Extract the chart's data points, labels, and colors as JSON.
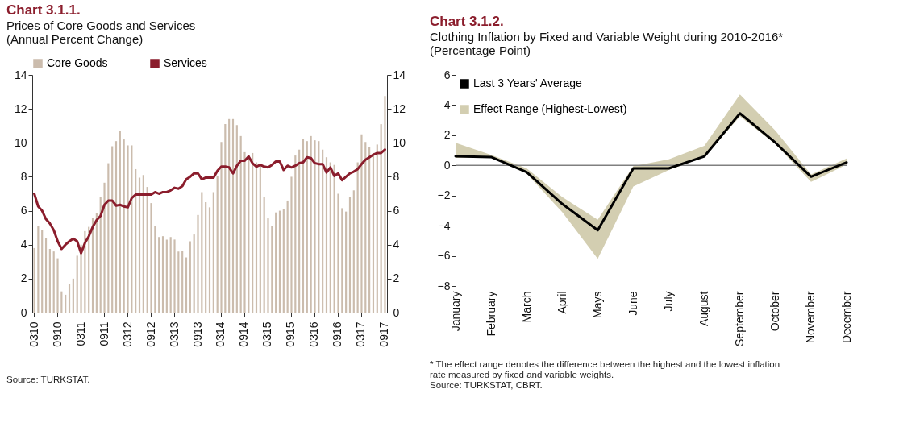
{
  "chart_data": [
    {
      "type": "bar",
      "title": "Chart 3.1.1.",
      "subtitle": "Prices of Core Goods and Services (Annual Percent Change)",
      "categories": [
        "0310",
        null,
        null,
        null,
        null,
        null,
        "0910",
        null,
        null,
        null,
        null,
        null,
        "0311",
        null,
        null,
        null,
        null,
        null,
        "0911",
        null,
        null,
        null,
        null,
        null,
        "0312",
        null,
        null,
        null,
        null,
        null,
        "0912",
        null,
        null,
        null,
        null,
        null,
        "0313",
        null,
        null,
        null,
        null,
        null,
        "0913",
        null,
        null,
        null,
        null,
        null,
        "0314",
        null,
        null,
        null,
        null,
        null,
        "0914",
        null,
        null,
        null,
        null,
        null,
        "0315",
        null,
        null,
        null,
        null,
        null,
        "0915",
        null,
        null,
        null,
        null,
        null,
        "0316",
        null,
        null,
        null,
        null,
        null,
        "0916",
        null,
        null,
        null,
        null,
        null,
        "0317",
        null,
        null,
        null,
        null,
        null,
        "0917"
      ],
      "series": [
        {
          "name": "Core Goods",
          "type": "bar",
          "color": "#cbbcad",
          "values": [
            3.8,
            5.1,
            4.85,
            4.4,
            3.75,
            3.6,
            3.2,
            1.25,
            1.05,
            1.7,
            2.0,
            3.35,
            4.0,
            4.8,
            5.05,
            5.6,
            5.85,
            6.8,
            7.65,
            8.8,
            9.8,
            10.1,
            10.7,
            10.2,
            9.85,
            9.85,
            8.45,
            7.95,
            8.1,
            7.4,
            6.45,
            5.1,
            4.45,
            4.5,
            4.3,
            4.45,
            4.3,
            3.6,
            3.65,
            3.25,
            4.2,
            4.6,
            5.75,
            7.1,
            6.5,
            6.2,
            7.1,
            8.05,
            10.05,
            11.1,
            11.4,
            11.4,
            11.05,
            10.4,
            9.45,
            9.25,
            9.4,
            8.85,
            8.7,
            6.8,
            5.55,
            5.1,
            5.9,
            6.0,
            6.1,
            6.6,
            8.0,
            9.25,
            9.6,
            10.25,
            10.1,
            10.4,
            10.15,
            10.1,
            9.6,
            9.15,
            8.85,
            8.7,
            7.0,
            6.15,
            5.95,
            6.8,
            7.2,
            8.85,
            10.5,
            10.05,
            9.75,
            9.4,
            9.9,
            11.1,
            12.75
          ]
        },
        {
          "name": "Services",
          "type": "line",
          "color": "#8b1d2c",
          "axis": "y2",
          "values": [
            7.0,
            6.25,
            6.0,
            5.5,
            5.25,
            4.85,
            4.2,
            3.75,
            4.0,
            4.2,
            4.35,
            4.2,
            3.5,
            4.1,
            4.5,
            5.05,
            5.45,
            5.7,
            6.35,
            6.6,
            6.6,
            6.3,
            6.35,
            6.25,
            6.2,
            6.75,
            6.95,
            6.95,
            6.95,
            6.95,
            6.95,
            7.1,
            7.0,
            7.1,
            7.1,
            7.2,
            7.35,
            7.3,
            7.45,
            7.85,
            8.0,
            8.2,
            8.2,
            7.85,
            7.95,
            7.95,
            7.95,
            8.35,
            8.6,
            8.6,
            8.55,
            8.2,
            8.65,
            8.95,
            8.95,
            9.2,
            8.8,
            8.6,
            8.7,
            8.6,
            8.55,
            8.7,
            8.9,
            8.9,
            8.4,
            8.65,
            8.55,
            8.65,
            8.8,
            8.85,
            9.15,
            9.1,
            8.8,
            8.75,
            8.75,
            8.25,
            8.55,
            8.05,
            8.2,
            7.8,
            8.0,
            8.2,
            8.3,
            8.45,
            8.75,
            9.0,
            9.15,
            9.3,
            9.4,
            9.4,
            9.6
          ]
        }
      ],
      "ylim": [
        0,
        14
      ],
      "yticks": [
        0,
        2,
        4,
        6,
        8,
        10,
        12,
        14
      ],
      "y2lim": [
        0,
        14
      ],
      "y2ticks": [
        0,
        2,
        4,
        6,
        8,
        10,
        12,
        14
      ],
      "legend": "top",
      "grid": false,
      "annotations": [
        "Source: TURKSTAT."
      ]
    },
    {
      "type": "line",
      "title": "Chart 3.1.2.",
      "subtitle": "Clothing Inflation by Fixed and Variable Weight during 2010-2016* (Percentage Point)",
      "categories": [
        "January",
        "February",
        "March",
        "April",
        "Mays",
        "June",
        "July",
        "August",
        "September",
        "October",
        "November",
        "December"
      ],
      "series": [
        {
          "name": "Last 3 Years' Average",
          "type": "line",
          "color": "#000000",
          "values": [
            0.6,
            0.55,
            -0.45,
            -2.55,
            -4.3,
            -0.2,
            -0.2,
            0.6,
            3.45,
            1.5,
            -0.75,
            0.2
          ]
        },
        {
          "name": "Effect Range (Highest-Lowest)",
          "type": "area",
          "color": "#d3ceb1",
          "values": [
            null,
            null,
            null,
            null,
            null,
            null,
            null,
            null,
            null,
            null,
            null,
            null
          ],
          "upper": [
            1.5,
            0.7,
            -0.2,
            -2.1,
            -3.6,
            -0.05,
            0.4,
            1.3,
            4.7,
            2.3,
            -0.6,
            0.45
          ],
          "lower": [
            0.5,
            0.55,
            -0.55,
            -3.1,
            -6.2,
            -1.4,
            -0.3,
            0.55,
            3.25,
            1.4,
            -1.1,
            0.05
          ]
        }
      ],
      "ylim": [
        -8,
        6
      ],
      "yticks": [
        -8,
        -6,
        -4,
        -2,
        0,
        2,
        4,
        6
      ],
      "ref_lines": [
        {
          "axis": "y",
          "value": 0,
          "color": "#808080"
        }
      ],
      "legend": "top left",
      "grid": false,
      "annotations": [
        "* The effect range denotes the difference between the highest and the lowest inflation rate measured by fixed and variable weights.",
        "Source: TURKSTAT, CBRT."
      ]
    }
  ]
}
